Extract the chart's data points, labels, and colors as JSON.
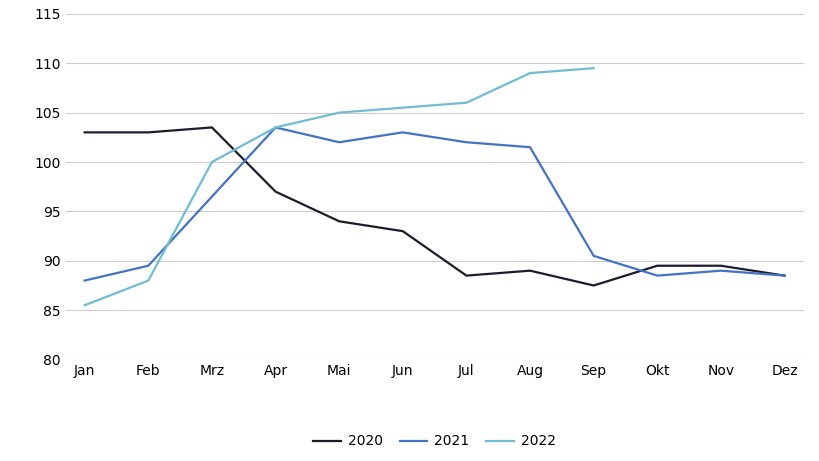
{
  "months": [
    "Jan",
    "Feb",
    "Mrz",
    "Apr",
    "Mai",
    "Jun",
    "Jul",
    "Aug",
    "Sep",
    "Okt",
    "Nov",
    "Dez"
  ],
  "series_2020": [
    103.0,
    103.0,
    103.5,
    97.0,
    94.0,
    93.0,
    88.5,
    89.0,
    87.5,
    89.5,
    89.5,
    88.5
  ],
  "series_2021": [
    88.0,
    89.5,
    96.5,
    103.5,
    102.0,
    103.0,
    102.0,
    101.5,
    90.5,
    88.5,
    89.0,
    88.5
  ],
  "series_2022": [
    85.5,
    88.0,
    100.0,
    103.5,
    105.0,
    105.5,
    106.0,
    109.0,
    109.5,
    null,
    null,
    null
  ],
  "color_2020": "#1c1c2e",
  "color_2021": "#4472c4",
  "color_2022": "#70bcd4",
  "ylim": [
    80,
    115
  ],
  "yticks": [
    80,
    85,
    90,
    95,
    100,
    105,
    110,
    115
  ],
  "legend_labels": [
    "2020",
    "2021",
    "2022"
  ],
  "background_color": "#ffffff",
  "grid_color": "#cccccc",
  "linewidth": 1.6
}
